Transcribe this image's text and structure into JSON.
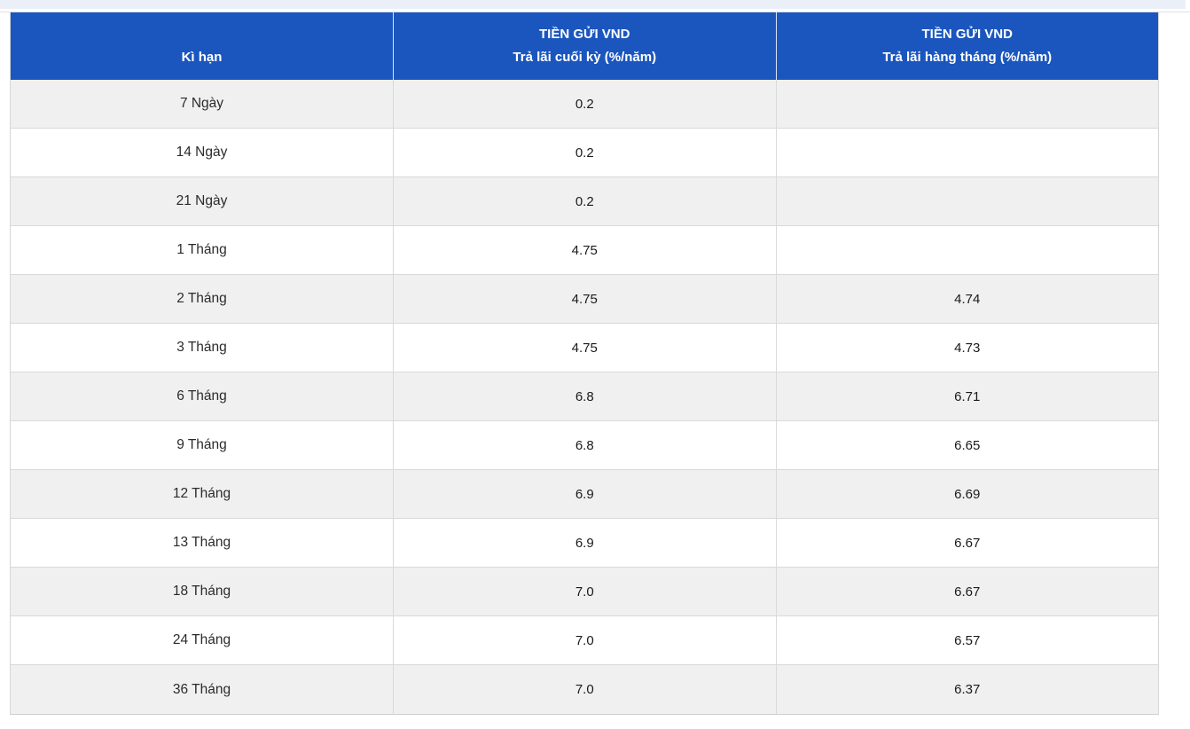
{
  "page": {
    "top_strip_color": "#ebeff8",
    "header_bg_color": "#1b56bf",
    "row_stripe_color": "#f0f0f0",
    "border_color": "#d9d9d9"
  },
  "table": {
    "columns": [
      {
        "label": "Kì hạn"
      },
      {
        "title": "TIỀN GỬI VND",
        "subtitle": "Trả lãi cuối kỳ (%/năm)"
      },
      {
        "title": "TIỀN GỬI VND",
        "subtitle": "Trả lãi hàng tháng (%/năm)"
      }
    ],
    "rows": [
      {
        "term": "7 Ngày",
        "end_of_term_rate": "0.2",
        "monthly_rate": ""
      },
      {
        "term": "14 Ngày",
        "end_of_term_rate": "0.2",
        "monthly_rate": ""
      },
      {
        "term": "21 Ngày",
        "end_of_term_rate": "0.2",
        "monthly_rate": ""
      },
      {
        "term": "1 Tháng",
        "end_of_term_rate": "4.75",
        "monthly_rate": ""
      },
      {
        "term": "2 Tháng",
        "end_of_term_rate": "4.75",
        "monthly_rate": "4.74"
      },
      {
        "term": "3 Tháng",
        "end_of_term_rate": "4.75",
        "monthly_rate": "4.73"
      },
      {
        "term": "6 Tháng",
        "end_of_term_rate": "6.8",
        "monthly_rate": "6.71"
      },
      {
        "term": "9 Tháng",
        "end_of_term_rate": "6.8",
        "monthly_rate": "6.65"
      },
      {
        "term": "12 Tháng",
        "end_of_term_rate": "6.9",
        "monthly_rate": "6.69"
      },
      {
        "term": "13 Tháng",
        "end_of_term_rate": "6.9",
        "monthly_rate": "6.67"
      },
      {
        "term": "18 Tháng",
        "end_of_term_rate": "7.0",
        "monthly_rate": "6.67"
      },
      {
        "term": "24 Tháng",
        "end_of_term_rate": "7.0",
        "monthly_rate": "6.57"
      },
      {
        "term": "36 Tháng",
        "end_of_term_rate": "7.0",
        "monthly_rate": "6.37"
      }
    ]
  }
}
